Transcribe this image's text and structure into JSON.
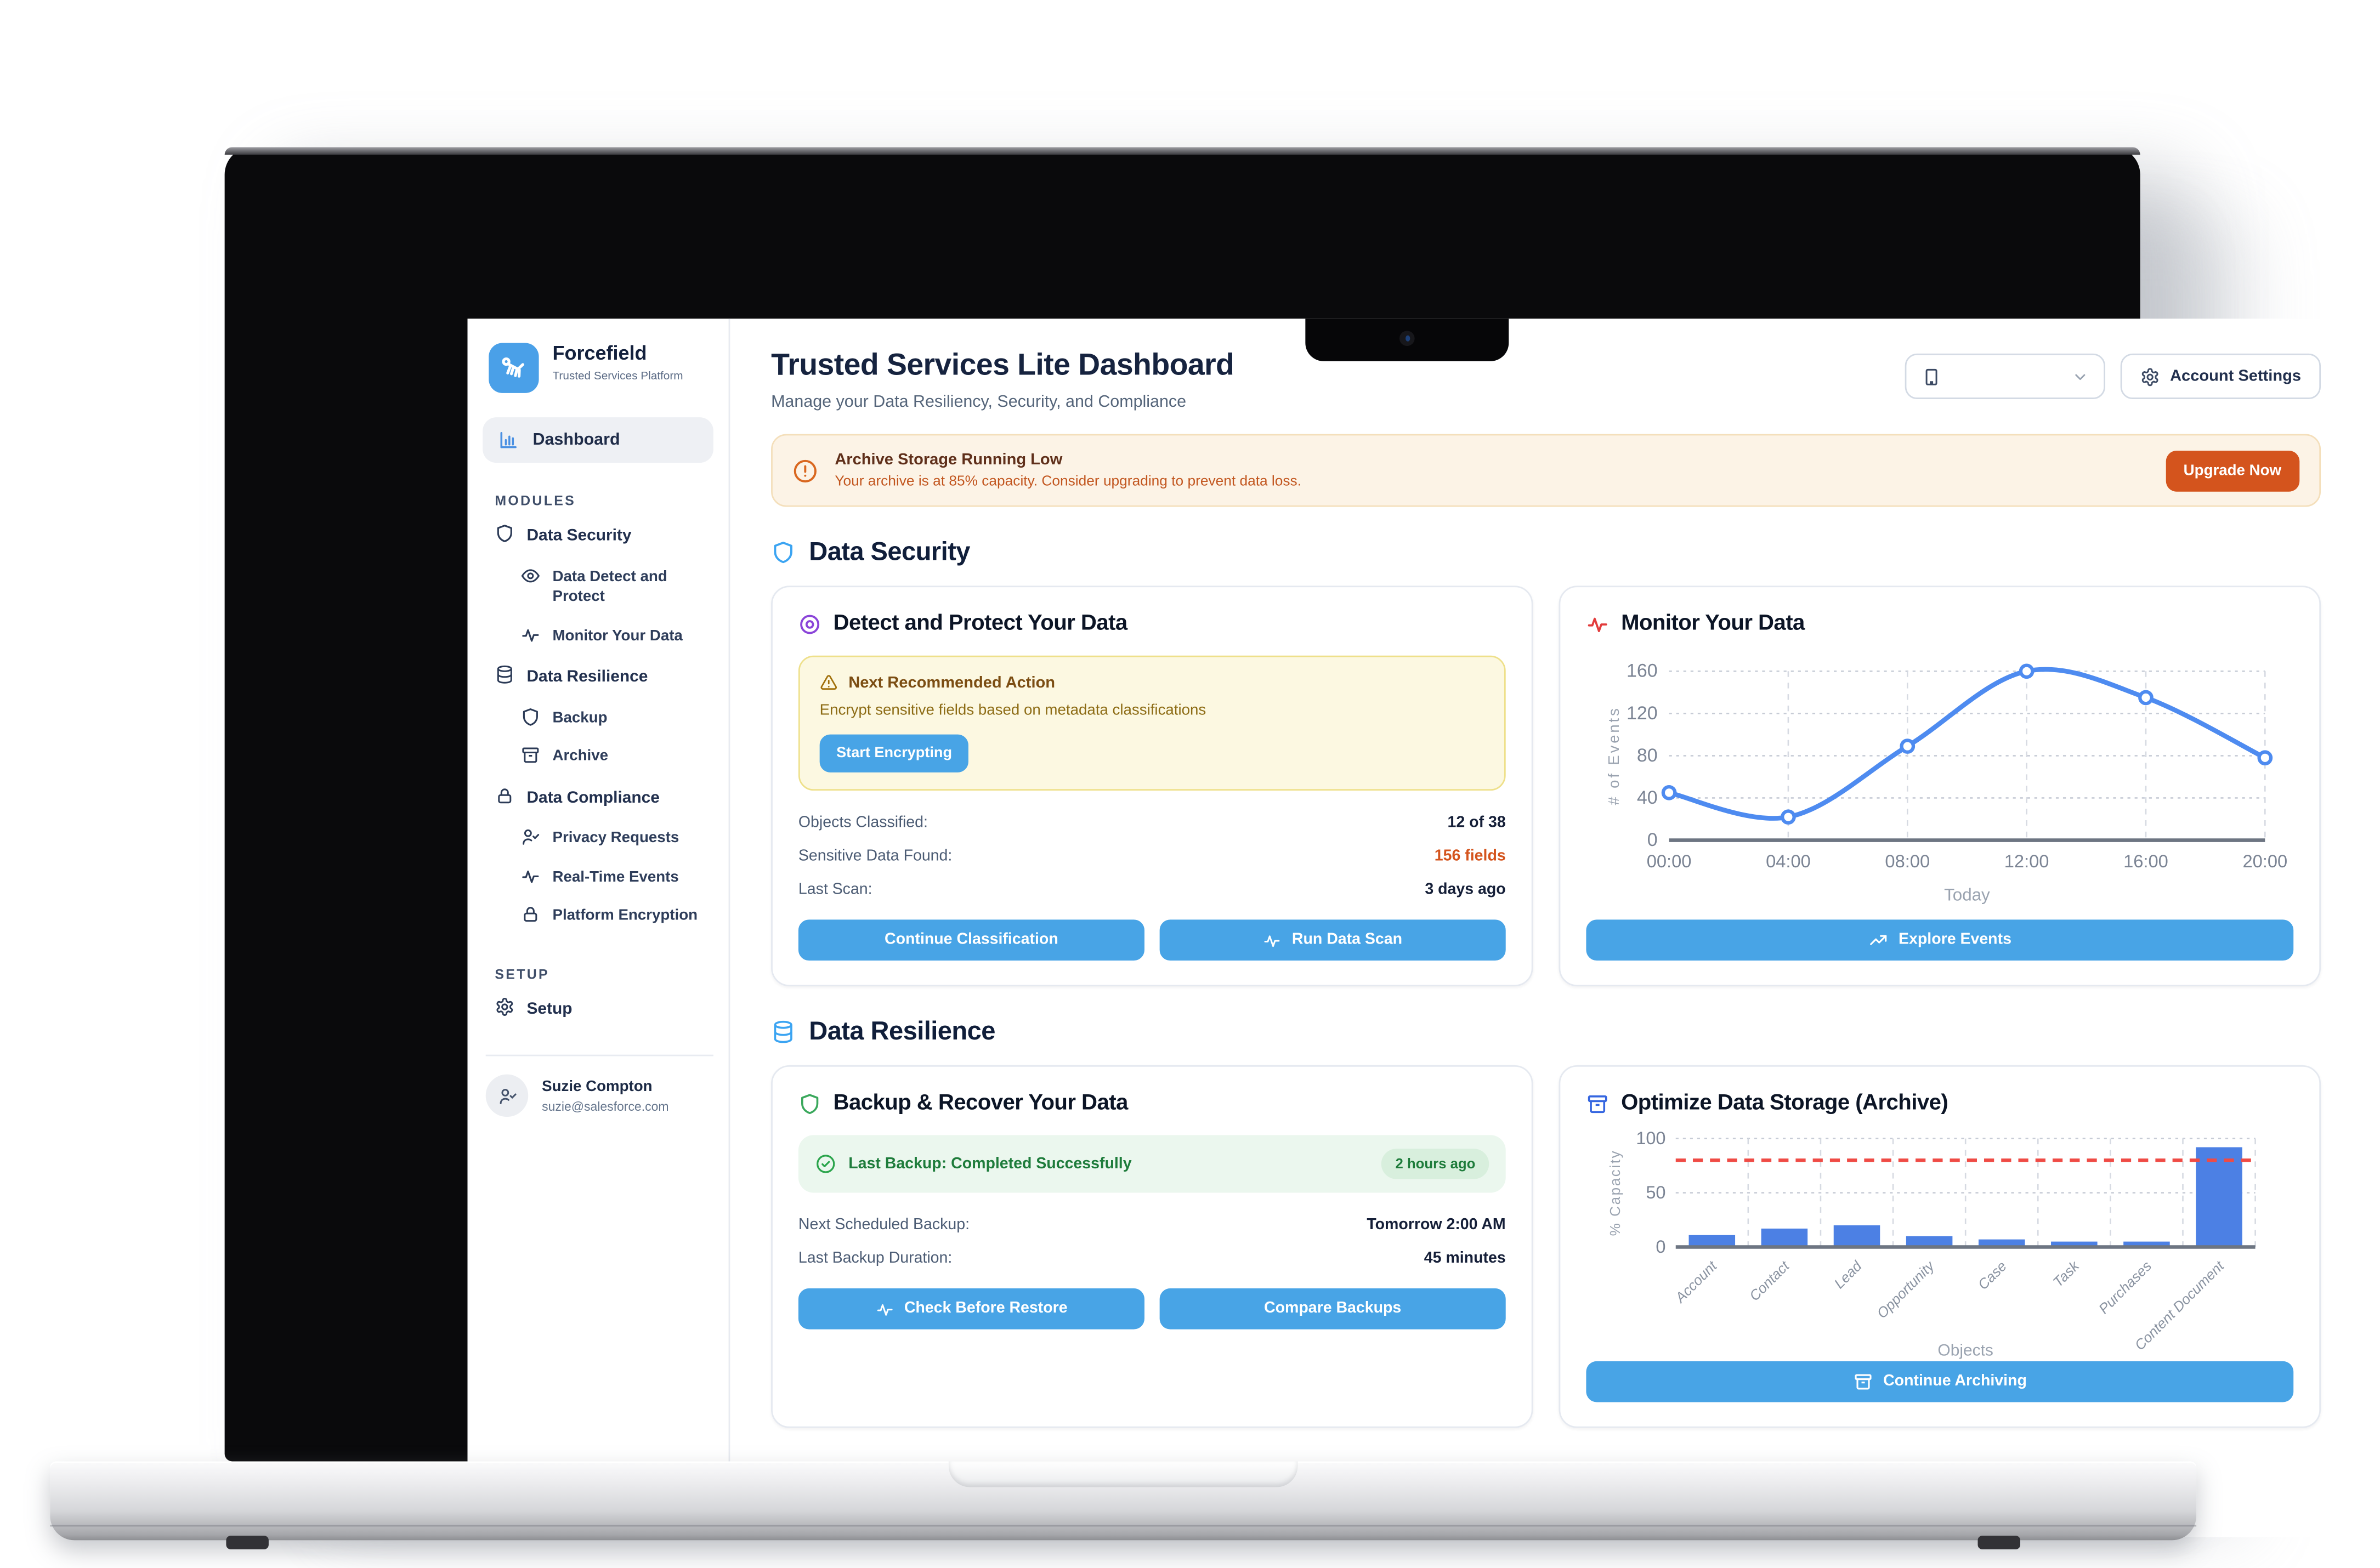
{
  "app": {
    "name": "Forcefield",
    "tagline": "Trusted Services Platform"
  },
  "sidebar": {
    "dashboard_label": "Dashboard",
    "sections": [
      {
        "label": "MODULES",
        "items": [
          {
            "label": "Data Security",
            "icon": "shield-icon"
          },
          {
            "label": "Data Detect and Protect",
            "icon": "eye-icon"
          },
          {
            "label": "Monitor Your Data",
            "icon": "activity-icon"
          },
          {
            "label": "Data Resilience",
            "icon": "database-icon"
          },
          {
            "label": "Backup",
            "icon": "shield-icon"
          },
          {
            "label": "Archive",
            "icon": "archive-icon"
          },
          {
            "label": "Data Compliance",
            "icon": "lock-icon"
          },
          {
            "label": "Privacy Requests",
            "icon": "user-check-icon"
          },
          {
            "label": "Real-Time Events",
            "icon": "activity-icon"
          },
          {
            "label": "Platform Encryption",
            "icon": "lock-icon"
          }
        ]
      },
      {
        "label": "SETUP",
        "items": [
          {
            "label": "Setup",
            "icon": "gear-icon"
          }
        ]
      }
    ],
    "user": {
      "name": "Suzie Compton",
      "email": "suzie@salesforce.com"
    }
  },
  "header": {
    "title": "Trusted Services Lite Dashboard",
    "subtitle": "Manage your Data Resiliency, Security, and Compliance",
    "account_settings_label": "Account Settings",
    "org_select_value": ""
  },
  "banner": {
    "title": "Archive Storage Running Low",
    "message": "Your archive is at 85% capacity. Consider upgrading to prevent data loss.",
    "button_label": "Upgrade Now"
  },
  "sections": {
    "data_security_title": "Data Security",
    "data_resilience_title": "Data Resilience"
  },
  "cards": {
    "detect": {
      "title": "Detect and Protect Your Data",
      "alert_title": "Next Recommended Action",
      "alert_message": "Encrypt sensitive fields based on metadata classifications",
      "alert_button": "Start Encrypting",
      "stats": [
        {
          "label": "Objects Classified:",
          "value": "12 of 38"
        },
        {
          "label": "Sensitive Data Found:",
          "value": "156 fields"
        },
        {
          "label": "Last Scan:",
          "value": "3 days ago"
        }
      ],
      "buttons": [
        "Continue Classification",
        "Run Data Scan"
      ]
    },
    "monitor": {
      "title": "Monitor Your Data",
      "button": "Explore Events"
    },
    "backup": {
      "title": "Backup & Recover Your Data",
      "status_text": "Last Backup: Completed Successfully",
      "status_badge": "2 hours ago",
      "stats": [
        {
          "label": "Next Scheduled Backup:",
          "value": "Tomorrow 2:00 AM"
        },
        {
          "label": "Last Backup Duration:",
          "value": "45 minutes"
        }
      ],
      "buttons": [
        "Check Before Restore",
        "Compare Backups"
      ]
    },
    "archive": {
      "title": "Optimize Data Storage (Archive)",
      "button": "Continue Archiving"
    }
  },
  "chart_data": [
    {
      "type": "line",
      "title": "Monitor Your Data",
      "x": [
        "00:00",
        "04:00",
        "08:00",
        "12:00",
        "16:00",
        "20:00"
      ],
      "series": [
        {
          "name": "# of Events",
          "values": [
            45,
            22,
            89,
            160,
            135,
            78
          ]
        }
      ],
      "xlabel": "Today",
      "ylabel": "# of Events",
      "ylim": [
        0,
        160
      ],
      "yticks": [
        0,
        40,
        80,
        120,
        160
      ],
      "grid": true,
      "line_color": "#4e8bf0"
    },
    {
      "type": "bar",
      "title": "Optimize Data Storage (Archive)",
      "categories": [
        "Account",
        "Contact",
        "Lead",
        "Opportunity",
        "Case",
        "Task",
        "Purchases",
        "Content Document"
      ],
      "values": [
        11,
        17,
        20,
        10,
        7,
        5,
        5,
        92
      ],
      "xlabel": "Objects",
      "ylabel": "% Capacity",
      "ylim": [
        0,
        100
      ],
      "yticks": [
        0,
        50,
        100
      ],
      "threshold": 80,
      "grid": true,
      "bar_color": "#4c80e4",
      "threshold_color": "#ef4b45"
    }
  ],
  "icons": {
    "logo-icon": "balloon-dog",
    "dashboard-icon": "bar-chart",
    "shield-icon": "shield",
    "eye-icon": "eye",
    "activity-icon": "pulse",
    "database-icon": "database",
    "archive-icon": "archive-box",
    "lock-icon": "padlock",
    "user-check-icon": "user-check",
    "gear-icon": "gear",
    "building-icon": "building",
    "chevron-down-icon": "chevron-down",
    "alert-circle-icon": "alert-circle",
    "alert-triangle-icon": "alert-triangle",
    "check-circle-icon": "check-circle",
    "target-icon": "concentric-circles",
    "trending-up-icon": "trending-up"
  },
  "colors": {
    "accent_blue": "#48a4e6",
    "brand_blue": "#4aa0e8",
    "alert_orange": "#d4541d",
    "success_green": "#1e7c3b",
    "warning_yellow_bg": "#fcf8e1",
    "banner_bg": "#fcf3e6",
    "line_series": "#4e8bf0",
    "bar_series": "#4c80e4",
    "threshold_red": "#ef4b45"
  }
}
